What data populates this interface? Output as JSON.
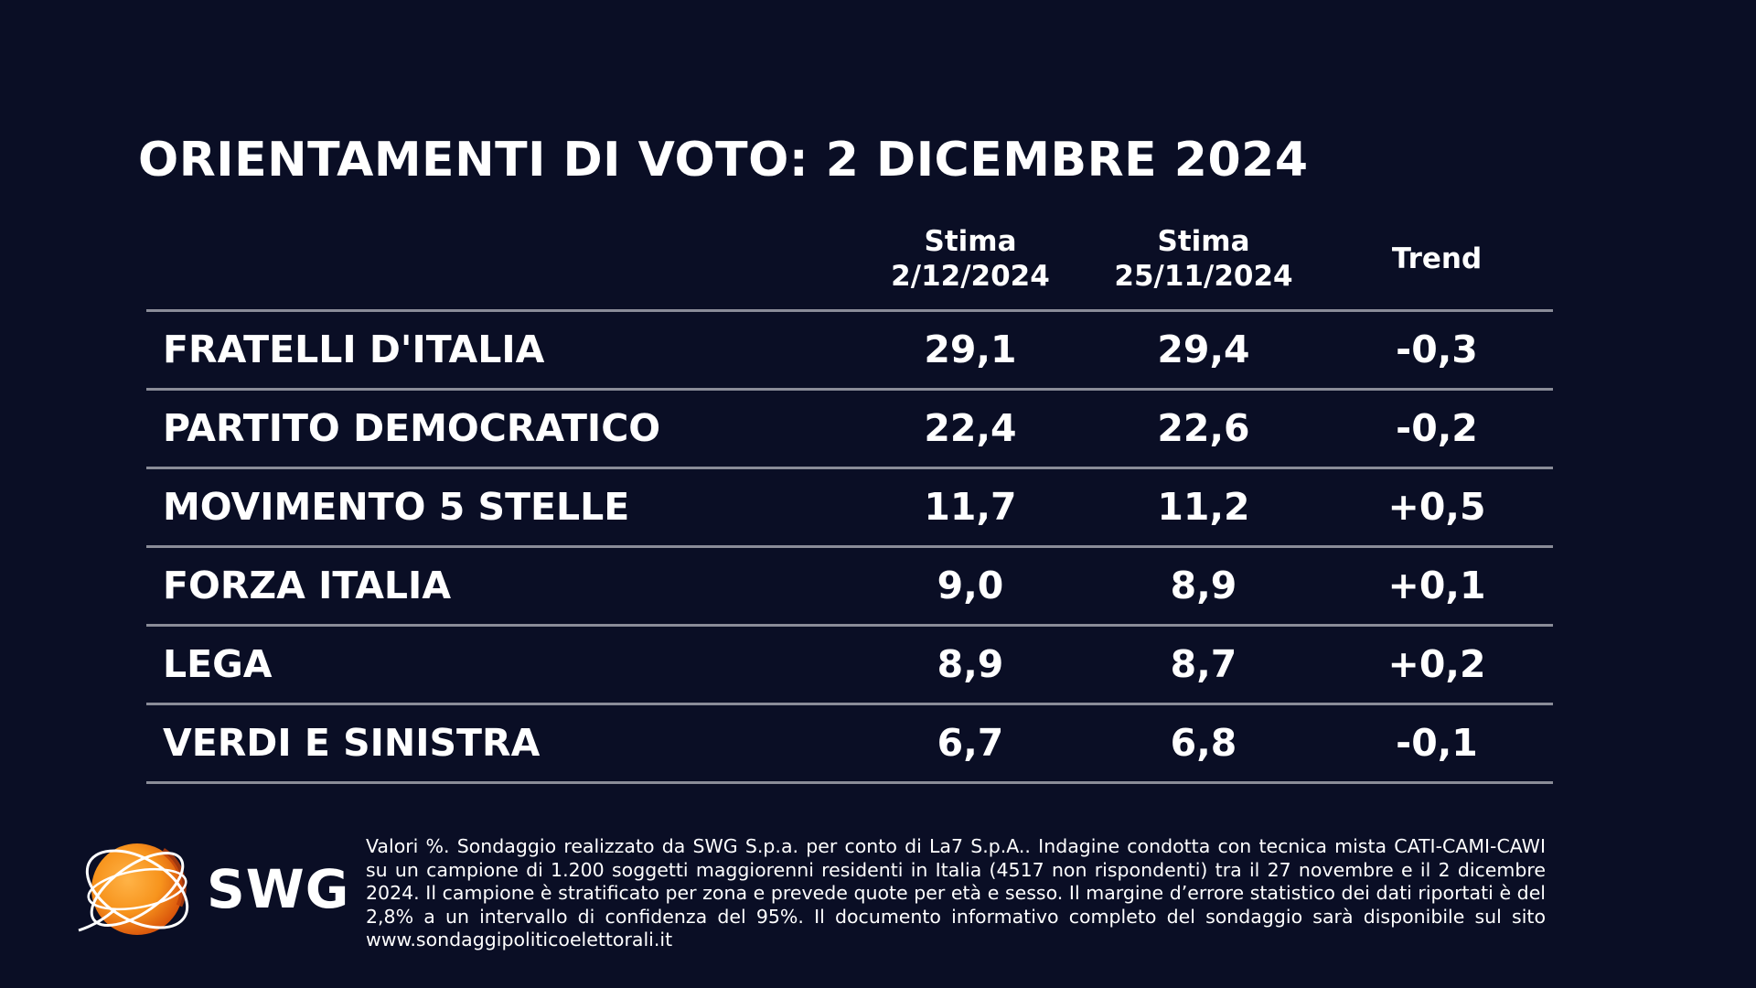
{
  "title": "ORIENTAMENTI DI VOTO: 2 DICEMBRE 2024",
  "headers": {
    "col1_line1": "Stima",
    "col1_line2": "2/12/2024",
    "col2_line1": "Stima",
    "col2_line2": "25/11/2024",
    "col3": "Trend"
  },
  "rows": [
    {
      "party": "FRATELLI D'ITALIA",
      "current": "29,1",
      "previous": "29,4",
      "trend": "-0,3"
    },
    {
      "party": "PARTITO DEMOCRATICO",
      "current": "22,4",
      "previous": "22,6",
      "trend": "-0,2"
    },
    {
      "party": "MOVIMENTO 5 STELLE",
      "current": "11,7",
      "previous": "11,2",
      "trend": "+0,5"
    },
    {
      "party": "FORZA ITALIA",
      "current": "9,0",
      "previous": "8,9",
      "trend": "+0,1"
    },
    {
      "party": "LEGA",
      "current": "8,9",
      "previous": "8,7",
      "trend": "+0,2"
    },
    {
      "party": "VERDI E SINISTRA",
      "current": "6,7",
      "previous": "6,8",
      "trend": "-0,1"
    }
  ],
  "chart_data": {
    "type": "table",
    "title": "ORIENTAMENTI DI VOTO: 2 DICEMBRE 2024",
    "columns": [
      "",
      "Stima 2/12/2024",
      "Stima 25/11/2024",
      "Trend"
    ],
    "categories": [
      "FRATELLI D'ITALIA",
      "PARTITO DEMOCRATICO",
      "MOVIMENTO 5 STELLE",
      "FORZA ITALIA",
      "LEGA",
      "VERDI E SINISTRA"
    ],
    "series": [
      {
        "name": "Stima 2/12/2024",
        "values": [
          29.1,
          22.4,
          11.7,
          9.0,
          8.9,
          6.7
        ]
      },
      {
        "name": "Stima 25/11/2024",
        "values": [
          29.4,
          22.6,
          11.2,
          8.9,
          8.7,
          6.8
        ]
      },
      {
        "name": "Trend",
        "values": [
          -0.3,
          -0.2,
          0.5,
          0.1,
          0.2,
          -0.1
        ]
      }
    ]
  },
  "logo": {
    "text": "SWG",
    "icon": "orange-globe-icon",
    "colors": {
      "globe": "#f7941d",
      "globe_dark": "#e8590c",
      "ring": "#ffffff"
    }
  },
  "footnote": "Valori %. Sondaggio realizzato da SWG S.p.a. per conto di La7 S.p.A.. Indagine condotta con tecnica mista CATI-CAMI-CAWI su un campione di 1.200 soggetti maggiorenni residenti in Italia (4517 non rispondenti) tra il 27 novembre e il 2 dicembre 2024. Il campione è stratificato per zona e prevede quote per età e sesso. Il margine d’errore statistico dei dati riportati è del 2,8% a un intervallo di confidenza del 95%. Il documento informativo completo del sondaggio sarà disponibile sul sito www.sondaggipoliticoelettorali.it",
  "colors": {
    "background": "#0a0e25",
    "text": "#ffffff",
    "rule": "#8a8c98"
  }
}
